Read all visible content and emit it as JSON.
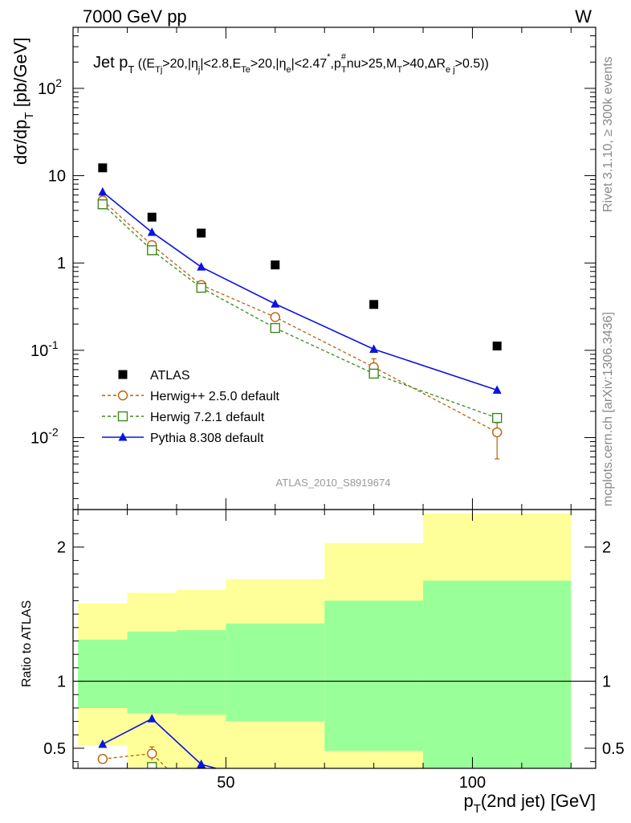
{
  "header": {
    "energy_label": "7000 GeV pp",
    "process_label": "W"
  },
  "side_text": {
    "rivet": "Rivet 3.1.10, ≥ 300k events",
    "mcplots": "mcplots.cern.ch [arXiv:1306.3436]"
  },
  "watermark": "ATLAS_2010_S8919674",
  "colors": {
    "atlas": "#000000",
    "herwigpp": "#b8620a",
    "herwig7": "#3a8a1a",
    "pythia": "#0a14e0",
    "band_outer": "#ffff99",
    "band_inner": "#99ff99"
  },
  "chart_data": [
    {
      "type": "scatter",
      "panel": "main",
      "title": "Jet pT ((ETj>20,|ηj|<2.8,ETe>20,|ηe|<2.47*,pT#nu>25,MT>40,ΔRej>0.5))",
      "title_parts": {
        "jet": "Jet p",
        "sub_t": "T",
        "cuts_open": " ((E",
        "tj": "Tj",
        "c1": ">20,|η",
        "j": "j",
        "c2": "|<2.8,E",
        "te": "Te",
        "c3": ">20,|η",
        "e": "e",
        "c4": "|<2.47",
        "star": "*",
        "c5": ",p",
        "nu_sup": "#",
        "nu_sub": "T",
        "c6": "nu>25,M",
        "mt": "T",
        "c7": ">40,ΔR",
        "ej": "e j",
        "c8": ">0.5))"
      },
      "ylabel_parts": {
        "main": "dσ/dp",
        "sub": "T",
        "unit": " [pb/GeV]"
      },
      "yscale": "log",
      "ylim": [
        0.0015,
        500
      ],
      "xlim": [
        19,
        125
      ],
      "y_ticks": [
        {
          "value": 0.01,
          "mant": "10",
          "exp": "-2"
        },
        {
          "value": 0.1,
          "mant": "10",
          "exp": "-1"
        },
        {
          "value": 1,
          "mant": "1",
          "exp": ""
        },
        {
          "value": 10,
          "mant": "10",
          "exp": ""
        },
        {
          "value": 100,
          "mant": "10",
          "exp": "2"
        }
      ],
      "legend_position": "lower-left",
      "series": [
        {
          "name": "ATLAS",
          "key": "atlas",
          "marker": "square-filled",
          "x": [
            25,
            35,
            45,
            60,
            80,
            105
          ],
          "y": [
            12.3,
            3.35,
            2.2,
            0.95,
            0.335,
            0.112
          ]
        },
        {
          "name": "Herwig++ 2.5.0 default",
          "key": "herwigpp",
          "marker": "circle-open",
          "dashed": true,
          "x": [
            25,
            35,
            45,
            60,
            80,
            105
          ],
          "y": [
            5.2,
            1.6,
            0.56,
            0.24,
            0.064,
            0.0115
          ],
          "err_low": [
            0,
            0,
            0,
            0,
            0.012,
            0.0058
          ],
          "err_high": [
            0,
            0,
            0,
            0,
            0.016,
            0.004
          ]
        },
        {
          "name": "Herwig 7.2.1 default",
          "key": "herwig7",
          "marker": "square-open",
          "dashed": true,
          "x": [
            25,
            35,
            45,
            60,
            80,
            105
          ],
          "y": [
            4.7,
            1.4,
            0.52,
            0.18,
            0.054,
            0.0168
          ],
          "err_low": [
            0,
            0,
            0,
            0,
            0,
            0.002
          ],
          "err_high": [
            0,
            0,
            0,
            0,
            0,
            0.002
          ]
        },
        {
          "name": "Pythia 8.308 default",
          "key": "pythia",
          "marker": "triangle-filled",
          "x": [
            25,
            35,
            45,
            60,
            80,
            105
          ],
          "y": [
            6.5,
            2.25,
            0.9,
            0.34,
            0.103,
            0.035
          ]
        }
      ]
    },
    {
      "type": "line",
      "panel": "ratio",
      "ylabel": "Ratio to ATLAS",
      "xlabel_parts": {
        "p": "p",
        "sub": "T",
        "rest": "(2nd jet) [GeV]"
      },
      "ylim": [
        0.35,
        2.28
      ],
      "xlim": [
        19,
        125
      ],
      "x_ticks": [
        {
          "value": 50,
          "label": "50"
        },
        {
          "value": 100,
          "label": "100"
        }
      ],
      "y_ticks": [
        {
          "value": 0.5,
          "label": "0.5"
        },
        {
          "value": 1,
          "label": "1"
        },
        {
          "value": 2,
          "label": "2"
        }
      ],
      "bins": [
        {
          "lo": 20,
          "hi": 30,
          "outer": [
            0.52,
            1.58
          ],
          "inner": [
            0.8,
            1.31
          ]
        },
        {
          "lo": 30,
          "hi": 40,
          "outer": [
            0.36,
            1.66
          ],
          "inner": [
            0.76,
            1.37
          ]
        },
        {
          "lo": 40,
          "hi": 50,
          "outer": [
            0.35,
            1.68
          ],
          "inner": [
            0.75,
            1.38
          ]
        },
        {
          "lo": 50,
          "hi": 70,
          "outer": [
            0.35,
            1.76
          ],
          "inner": [
            0.7,
            1.43
          ]
        },
        {
          "lo": 70,
          "hi": 90,
          "outer": [
            0.35,
            2.03
          ],
          "inner": [
            0.48,
            1.6
          ]
        },
        {
          "lo": 90,
          "hi": 120,
          "outer": [
            0.35,
            2.25
          ],
          "inner": [
            0.35,
            1.75
          ]
        }
      ],
      "series": [
        {
          "name": "Herwig++ 2.5.0 default",
          "key": "herwigpp",
          "marker": "circle-open",
          "dashed": true,
          "x": [
            25,
            35
          ],
          "y": [
            0.42,
            0.46
          ],
          "err": [
            0.03,
            0.05
          ],
          "continues_to": [
            40,
            0.28
          ]
        },
        {
          "name": "Herwig 7.2.1 default",
          "key": "herwig7",
          "marker": "square-open",
          "dashed": true,
          "x": [
            35
          ],
          "y": [
            0.36
          ],
          "err": [
            0
          ],
          "continues_to": [
            40,
            0.25
          ]
        },
        {
          "name": "Pythia 8.308 default",
          "key": "pythia",
          "marker": "triangle-filled",
          "x": [
            25,
            35,
            45
          ],
          "y": [
            0.53,
            0.72,
            0.38
          ],
          "err": [
            0,
            0,
            0
          ],
          "continues_to": [
            50,
            0.33
          ]
        }
      ]
    }
  ]
}
